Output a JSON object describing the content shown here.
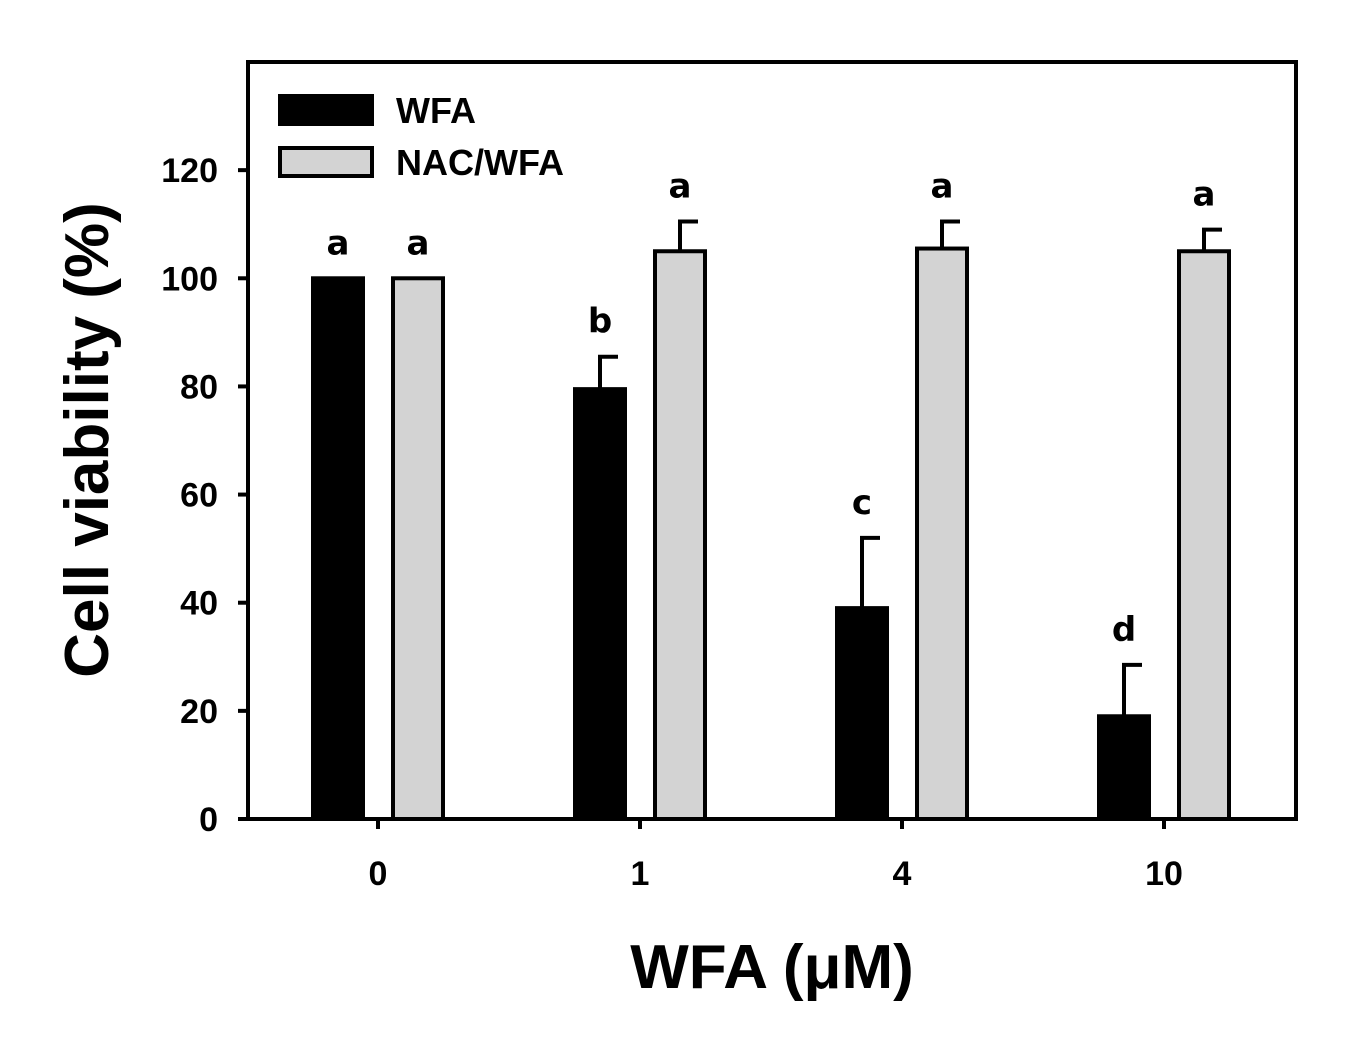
{
  "chart_data": {
    "type": "bar",
    "title": "",
    "xlabel": "WFA (μM)",
    "ylabel": "Cell viability (%)",
    "categories": [
      "0",
      "1",
      "4",
      "10"
    ],
    "ylim": [
      0,
      140
    ],
    "yticks": [
      0,
      20,
      40,
      60,
      80,
      100,
      120
    ],
    "grid": false,
    "legend_position": "top-left",
    "series": [
      {
        "name": "WFA",
        "color": "#000000",
        "values": [
          100,
          79.5,
          39,
          19
        ],
        "errors": [
          0,
          6,
          13,
          9.5
        ],
        "labels": [
          "a",
          "b",
          "c",
          "d"
        ]
      },
      {
        "name": "NAC/WFA",
        "color": "#d3d3d3",
        "values": [
          100,
          105,
          105.5,
          105
        ],
        "errors": [
          0,
          5.5,
          5,
          4
        ],
        "labels": [
          "a",
          "a",
          "a",
          "a"
        ]
      }
    ]
  }
}
